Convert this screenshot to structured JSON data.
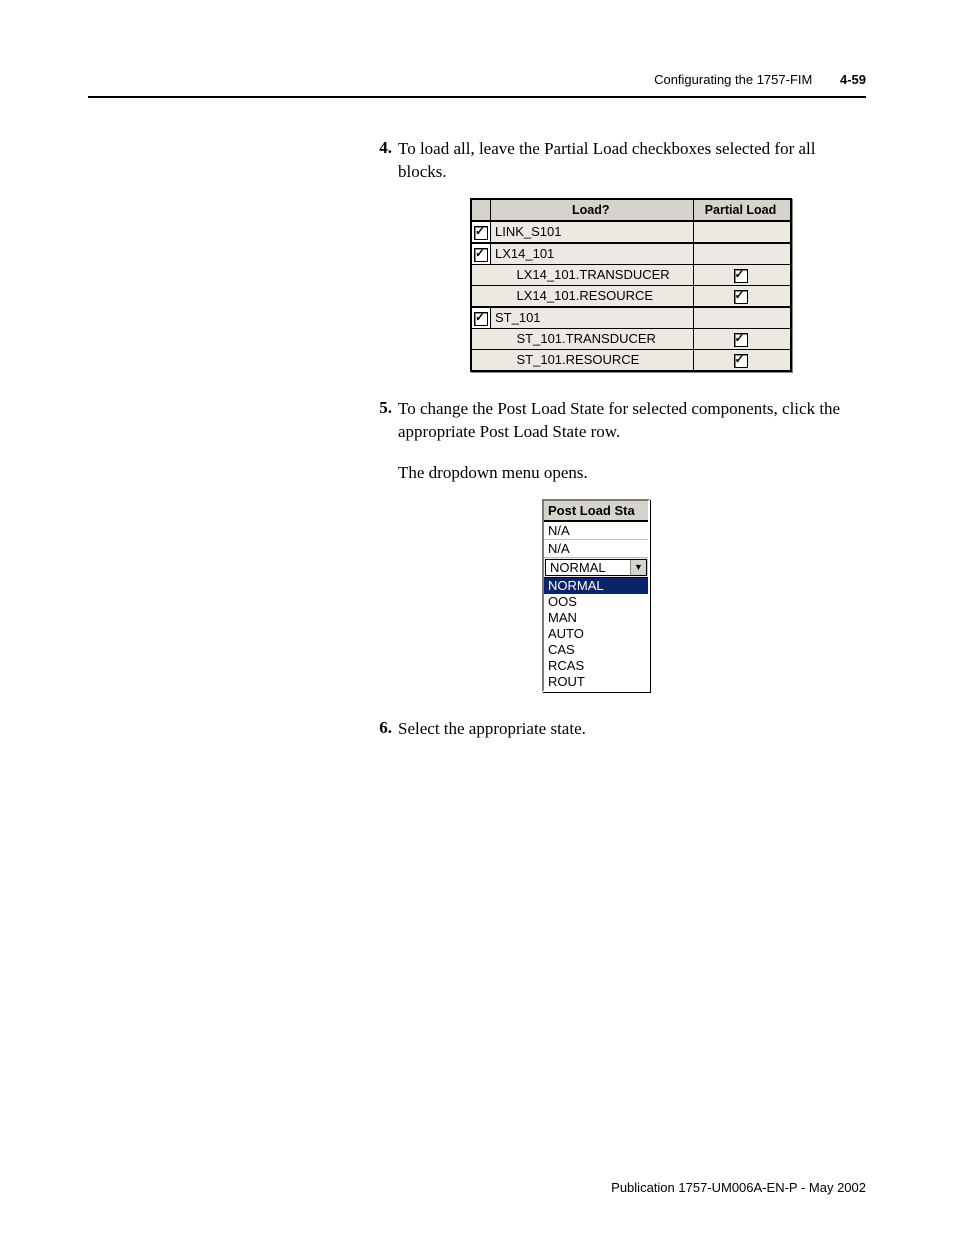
{
  "running_head": {
    "title": "Configurating the 1757-FIM",
    "page_num": "4-59"
  },
  "steps": {
    "s4": {
      "num": "4.",
      "text": "To load all, leave the Partial Load checkboxes selected for all blocks."
    },
    "s5": {
      "num": "5.",
      "text": "To change the Post Load State for selected components, click the appropriate Post Load State row."
    },
    "s5_para": "The dropdown menu opens.",
    "s6": {
      "num": "6.",
      "text": "Select the appropriate state."
    }
  },
  "load_table": {
    "headers": {
      "load": "Load?",
      "partial": "Partial Load"
    },
    "rows": [
      {
        "type": "parent",
        "label": "LINK_S101",
        "load_checked": true
      },
      {
        "type": "parent",
        "label": "LX14_101",
        "load_checked": true
      },
      {
        "type": "child",
        "label": "LX14_101.TRANSDUCER",
        "partial_checked": true
      },
      {
        "type": "child",
        "label": "LX14_101.RESOURCE",
        "partial_checked": true
      },
      {
        "type": "parent",
        "label": "ST_101",
        "load_checked": true
      },
      {
        "type": "child",
        "label": "ST_101.TRANSDUCER",
        "partial_checked": true
      },
      {
        "type": "child",
        "label": "ST_101.RESOURCE",
        "partial_checked": true
      }
    ]
  },
  "dropdown": {
    "header": "Post Load Sta",
    "rows_above": [
      "N/A",
      "N/A"
    ],
    "combo_value": "NORMAL",
    "options": [
      "NORMAL",
      "OOS",
      "MAN",
      "AUTO",
      "CAS",
      "RCAS",
      "ROUT"
    ],
    "selected_index": 0
  },
  "footer": "Publication 1757-UM006A-EN-P - May 2002",
  "style": {
    "page_bg": "#ffffff",
    "rule_color": "#000000",
    "body_font": "Georgia, 'Times New Roman', serif",
    "ui_font": "Arial, Helvetica, sans-serif",
    "body_fontsize_pt": 12,
    "ui_fontsize_pt": 10,
    "table_bg": "#ece9e3",
    "table_header_bg": "#d6d3cd",
    "table_border": "#000000",
    "highlight_bg": "#0a246a",
    "highlight_fg": "#ffffff"
  }
}
